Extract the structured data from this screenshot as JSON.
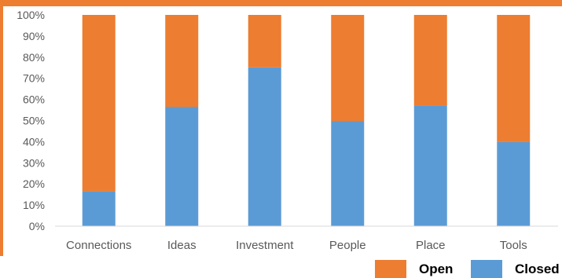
{
  "chart_data": {
    "type": "bar",
    "stacked": true,
    "percent_stacked": true,
    "categories": [
      "Connections",
      "Ideas",
      "Investment",
      "People",
      "Place",
      "Tools"
    ],
    "series": [
      {
        "name": "Closed",
        "color": "#5B9BD5",
        "values": [
          16.5,
          56.5,
          75.2,
          49.8,
          57.2,
          39.8
        ]
      },
      {
        "name": "Open",
        "color": "#ED7D31",
        "values": [
          83.5,
          43.5,
          24.8,
          50.2,
          42.8,
          60.2
        ]
      }
    ],
    "y_ticks": [
      "0%",
      "10%",
      "20%",
      "30%",
      "40%",
      "50%",
      "60%",
      "70%",
      "80%",
      "90%",
      "100%"
    ],
    "ylim": [
      0,
      100
    ],
    "grid": false,
    "legend_position": "bottom-right"
  },
  "legend": {
    "items": [
      {
        "label": "Open",
        "color": "#ED7D31"
      },
      {
        "label": "Closed",
        "color": "#5B9BD5"
      }
    ]
  },
  "colors": {
    "accent": "#ED7D31"
  }
}
